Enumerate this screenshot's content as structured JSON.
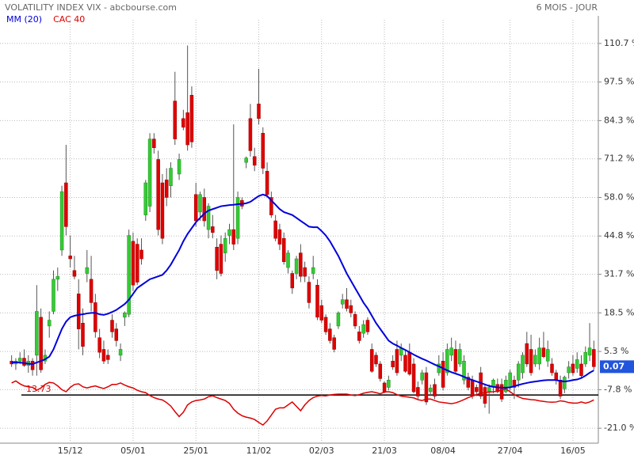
{
  "chart_data": {
    "type": "candlestick",
    "title": "VOLATILITY INDEX VIX - abcbourse.com",
    "subtitle": "6 MOIS - JOUR",
    "up_color": "#33cc33",
    "down_color": "#e00000",
    "wick_color": "#555555",
    "grid": true,
    "ylim": [
      -26.1,
      118.8
    ],
    "yticks": [
      {
        "value": 110.7,
        "label": "110.7 %"
      },
      {
        "value": 97.5,
        "label": "97.5 %"
      },
      {
        "value": 84.3,
        "label": "84.3 %"
      },
      {
        "value": 71.2,
        "label": "71.2 %"
      },
      {
        "value": 58.0,
        "label": "58.0 %"
      },
      {
        "value": 44.8,
        "label": "44.8 %"
      },
      {
        "value": 31.7,
        "label": "31.7 %"
      },
      {
        "value": 18.5,
        "label": "18.5 %"
      },
      {
        "value": 5.3,
        "label": "5.3 %"
      },
      {
        "value": -7.8,
        "label": "-7.8 %"
      },
      {
        "value": -21.0,
        "label": "-21.0 %"
      }
    ],
    "baseline": -9.6,
    "baseline_label": "13.73",
    "last_label": "0.07",
    "last_color": "#2255dd",
    "categories": [
      null,
      null,
      null,
      null,
      null,
      null,
      null,
      null,
      null,
      null,
      null,
      null,
      null,
      null,
      "15/12",
      null,
      null,
      null,
      null,
      null,
      null,
      null,
      null,
      null,
      null,
      null,
      null,
      null,
      null,
      "05/01",
      null,
      null,
      null,
      null,
      null,
      null,
      null,
      null,
      null,
      null,
      null,
      null,
      null,
      null,
      "25/01",
      null,
      null,
      null,
      null,
      null,
      null,
      null,
      null,
      null,
      null,
      null,
      null,
      null,
      null,
      "11/02",
      null,
      null,
      null,
      null,
      null,
      null,
      null,
      null,
      null,
      null,
      null,
      null,
      null,
      null,
      "02/03",
      null,
      null,
      null,
      null,
      null,
      null,
      null,
      null,
      null,
      null,
      null,
      null,
      null,
      null,
      "21/03",
      null,
      null,
      null,
      null,
      null,
      null,
      null,
      null,
      null,
      null,
      null,
      null,
      null,
      "08/04",
      null,
      null,
      null,
      null,
      null,
      null,
      null,
      null,
      null,
      null,
      null,
      null,
      null,
      null,
      null,
      "27/04",
      null,
      null,
      null,
      null,
      null,
      null,
      null,
      null,
      null,
      null,
      null,
      null,
      null,
      null,
      "16/05",
      null,
      null,
      null,
      null,
      null
    ],
    "ohlc": [
      [
        2,
        4,
        0,
        1
      ],
      [
        1,
        3,
        -1,
        2
      ],
      [
        2,
        5,
        1,
        3
      ],
      [
        3,
        6,
        0,
        0.5
      ],
      [
        0.5,
        4,
        -2,
        2
      ],
      [
        2,
        3,
        -3,
        -1
      ],
      [
        4,
        28,
        -3,
        19
      ],
      [
        17,
        20,
        -2,
        -1
      ],
      [
        2,
        6,
        1,
        4
      ],
      [
        14,
        19,
        10,
        16
      ],
      [
        19,
        33,
        18,
        30
      ],
      [
        30,
        34,
        26,
        31
      ],
      [
        40,
        62,
        38,
        60
      ],
      [
        63,
        76,
        45,
        48
      ],
      [
        38,
        45,
        34,
        37
      ],
      [
        33,
        38,
        30,
        31
      ],
      [
        25,
        30,
        6,
        13
      ],
      [
        15,
        20,
        4,
        7
      ],
      [
        32,
        40,
        29,
        34
      ],
      [
        30,
        38,
        19,
        22
      ],
      [
        22,
        25,
        10,
        12
      ],
      [
        10,
        13,
        3,
        5
      ],
      [
        6,
        9,
        1,
        2
      ],
      [
        4,
        6,
        1,
        2.5
      ],
      [
        16,
        18,
        10,
        12
      ],
      [
        13,
        15,
        7,
        9
      ],
      [
        4,
        8,
        2,
        6
      ],
      [
        17,
        19,
        14,
        18.5
      ],
      [
        18,
        47,
        17,
        45
      ],
      [
        43,
        46,
        26,
        28
      ],
      [
        42,
        44,
        28,
        29
      ],
      [
        40,
        44,
        35,
        37
      ],
      [
        52,
        64,
        50,
        63
      ],
      [
        55,
        80,
        53,
        78
      ],
      [
        78,
        80,
        73,
        75
      ],
      [
        71,
        74,
        45,
        47
      ],
      [
        63,
        66,
        42,
        44
      ],
      [
        64,
        68,
        55,
        58
      ],
      [
        62,
        70,
        58,
        68
      ],
      [
        91,
        101,
        76,
        78
      ],
      [
        66,
        73,
        64,
        71
      ],
      [
        85,
        88,
        81,
        82
      ],
      [
        87,
        110,
        74,
        76
      ],
      [
        93,
        96,
        75,
        77
      ],
      [
        59,
        63,
        48,
        50
      ],
      [
        53,
        60,
        50,
        59
      ],
      [
        58,
        61,
        48,
        50
      ],
      [
        47,
        56,
        44,
        55
      ],
      [
        48,
        52,
        44,
        46
      ],
      [
        41,
        44,
        30,
        33
      ],
      [
        42,
        45,
        31,
        32
      ],
      [
        39,
        46,
        36,
        44
      ],
      [
        45,
        49,
        42,
        47
      ],
      [
        47,
        83,
        40,
        42
      ],
      [
        44,
        60,
        42,
        58
      ],
      [
        57,
        58,
        54,
        55
      ],
      [
        70,
        72,
        68,
        71.5
      ],
      [
        85,
        90,
        72,
        74
      ],
      [
        72,
        75,
        67,
        69
      ],
      [
        90,
        102,
        83,
        85
      ],
      [
        80,
        82,
        66,
        68
      ],
      [
        67,
        70,
        58,
        59
      ],
      [
        58,
        60,
        51,
        52
      ],
      [
        50,
        52,
        43,
        44
      ],
      [
        47,
        49,
        40,
        42
      ],
      [
        44,
        46,
        35,
        36
      ],
      [
        34,
        40,
        32,
        39
      ],
      [
        32,
        33,
        25,
        27
      ],
      [
        32,
        38,
        30,
        37
      ],
      [
        39,
        42,
        29,
        31
      ],
      [
        34,
        36,
        29,
        31
      ],
      [
        29,
        31,
        20,
        22
      ],
      [
        32,
        38,
        30,
        34
      ],
      [
        28,
        30,
        16,
        17
      ],
      [
        21,
        23,
        15,
        16
      ],
      [
        17,
        18,
        11,
        12
      ],
      [
        13,
        15,
        8,
        9
      ],
      [
        10,
        11,
        5,
        6
      ],
      [
        14,
        19,
        13,
        18.5
      ],
      [
        21.5,
        25,
        20,
        23
      ],
      [
        23,
        27,
        19,
        20
      ],
      [
        21,
        23,
        17,
        18.5
      ],
      [
        18,
        19,
        13,
        14
      ],
      [
        12,
        14,
        8,
        9
      ],
      [
        11.5,
        16,
        10,
        14.5
      ],
      [
        16,
        17,
        11,
        12
      ],
      [
        6,
        8,
        -2,
        -1.5
      ],
      [
        4,
        5,
        0,
        1
      ],
      [
        1,
        2,
        -5,
        -4
      ],
      [
        -5.5,
        -5,
        -9,
        -8.5
      ],
      [
        -7,
        -3,
        -8,
        -4.5
      ],
      [
        2,
        4,
        -1,
        0
      ],
      [
        6,
        9,
        -3,
        -2
      ],
      [
        4,
        8,
        2,
        6.5
      ],
      [
        4,
        6,
        -2,
        -1.5
      ],
      [
        5,
        8,
        -3,
        -2.5
      ],
      [
        1,
        3,
        -9,
        -8.5
      ],
      [
        -7,
        -5,
        -11,
        -10
      ],
      [
        -4.5,
        -1,
        -6,
        -2
      ],
      [
        -2,
        0,
        -13,
        -12
      ],
      [
        -8.5,
        -6,
        -10,
        -7.2
      ],
      [
        -6,
        -4,
        -11,
        -10
      ],
      [
        -2,
        4,
        -3,
        1
      ],
      [
        2,
        5,
        -8,
        -7
      ],
      [
        -2,
        8,
        -3,
        6
      ],
      [
        4,
        10,
        2,
        6.5
      ],
      [
        6,
        9,
        -2,
        -1.5
      ],
      [
        1,
        8,
        0,
        6
      ],
      [
        -4.5,
        4,
        -6,
        2
      ],
      [
        -3.5,
        -2,
        -8,
        -7
      ],
      [
        -4.5,
        -3,
        -11,
        -10
      ],
      [
        -7,
        -6,
        -10,
        -8.5
      ],
      [
        -2,
        0,
        -11,
        -10
      ],
      [
        -7,
        -6,
        -14,
        -12.5
      ],
      [
        -8.5,
        -6,
        -16,
        -7
      ],
      [
        -7,
        -4,
        -9,
        -4.5
      ],
      [
        -6,
        -4,
        -9,
        -8.5
      ],
      [
        -6,
        -4,
        -12,
        -11
      ],
      [
        -8.5,
        -3,
        -9,
        -4.5
      ],
      [
        -7,
        -1,
        -8,
        -2
      ],
      [
        -4.5,
        -3,
        -11,
        -7
      ],
      [
        -4.5,
        2,
        -7,
        1
      ],
      [
        -2,
        5,
        -4,
        4
      ],
      [
        8,
        12,
        0,
        1
      ],
      [
        6,
        11,
        -3,
        -2
      ],
      [
        1,
        6,
        0,
        4
      ],
      [
        1,
        10,
        -1,
        6.5
      ],
      [
        6.5,
        12,
        3,
        3.5
      ],
      [
        2,
        9,
        0,
        6
      ],
      [
        1,
        3,
        -3,
        -2
      ],
      [
        -2,
        -1,
        -6,
        -4.5
      ],
      [
        -4.5,
        -3,
        -11,
        -10
      ],
      [
        -7.5,
        -3,
        -9,
        -3.5
      ],
      [
        -2,
        2,
        -4,
        0
      ],
      [
        1,
        4,
        -3,
        -2
      ],
      [
        -0.5,
        5,
        -2,
        2.5
      ],
      [
        1,
        4,
        -4,
        -3
      ],
      [
        1,
        7,
        0,
        5
      ],
      [
        4,
        15,
        2,
        6.5
      ],
      [
        6,
        9,
        -1,
        0.07
      ]
    ],
    "series": [
      {
        "name": "MM (20)",
        "color": "#0000dd",
        "values": [
          1.5,
          1.6,
          1.5,
          1.3,
          1.1,
          1.0,
          1.5,
          2.0,
          2.6,
          3.5,
          6.0,
          9.5,
          13,
          15.5,
          17,
          17.5,
          17.8,
          18.0,
          18.3,
          18.5,
          18.5,
          18.0,
          17.8,
          18.2,
          18.8,
          19.5,
          20.5,
          21.5,
          23,
          25,
          27,
          28,
          29,
          30,
          30.5,
          31,
          31.5,
          33,
          35,
          37.5,
          40,
          43,
          45.5,
          47.5,
          49.5,
          51,
          52.5,
          53.5,
          54,
          54.5,
          55,
          55.2,
          55.4,
          55.5,
          55.7,
          55.8,
          56,
          56.5,
          57.5,
          58.5,
          59,
          58.5,
          57,
          55.5,
          54,
          53,
          52.5,
          52,
          51,
          50,
          49,
          48,
          47.8,
          47.8,
          46.5,
          45,
          43,
          40.5,
          38,
          35,
          32,
          29.5,
          27,
          24.5,
          22,
          20,
          17.5,
          15,
          13,
          11,
          9,
          8,
          7.3,
          6.5,
          5.8,
          5,
          4.2,
          3.5,
          2.8,
          2.2,
          1.5,
          0.8,
          0.2,
          -0.5,
          -1.2,
          -1.8,
          -2.3,
          -2.8,
          -3.4,
          -4,
          -4.5,
          -5,
          -5.5,
          -6,
          -6.5,
          -6.8,
          -7,
          -7.1,
          -7.1,
          -7,
          -6.6,
          -6.2,
          -5.8,
          -5.5,
          -5.2,
          -5,
          -4.8,
          -4.6,
          -4.5,
          -4.5,
          -4.5,
          -4.8,
          -5,
          -4.8,
          -4.5,
          -4.3,
          -3.8,
          -3,
          -2,
          -1.2
        ]
      },
      {
        "name": "CAC 40",
        "color": "#dd0000",
        "values": [
          -5.5,
          -4.8,
          -5.8,
          -6.5,
          -6.8,
          -7.0,
          -8.0,
          -7.2,
          -6.0,
          -5.3,
          -5.5,
          -6.5,
          -7.8,
          -8.5,
          -7.0,
          -6.0,
          -5.8,
          -6.8,
          -7.2,
          -6.8,
          -6.5,
          -7.0,
          -7.4,
          -6.8,
          -6.0,
          -6.0,
          -5.5,
          -6.2,
          -6.8,
          -7.2,
          -8.0,
          -8.5,
          -8.8,
          -9.8,
          -10.5,
          -11.0,
          -11.3,
          -12.2,
          -13.4,
          -15.3,
          -17.0,
          -15.5,
          -13.0,
          -12.0,
          -11.5,
          -11.3,
          -11.0,
          -10.2,
          -9.9,
          -10.5,
          -11.0,
          -11.5,
          -12.5,
          -14.5,
          -15.8,
          -16.7,
          -17.2,
          -17.5,
          -18.0,
          -19.0,
          -19.9,
          -18.5,
          -16.5,
          -14.5,
          -14.0,
          -14.0,
          -13.0,
          -12.0,
          -13.5,
          -15.0,
          -13.0,
          -11.5,
          -10.5,
          -10.0,
          -9.8,
          -9.9,
          -9.6,
          -9.4,
          -9.3,
          -9.3,
          -9.3,
          -9.6,
          -9.8,
          -9.5,
          -9.0,
          -8.7,
          -8.5,
          -8.8,
          -9.2,
          -8.6,
          -8.5,
          -8.8,
          -9.5,
          -10.0,
          -10.2,
          -10.4,
          -10.6,
          -11.2,
          -11.5,
          -11.0,
          -11.0,
          -11.5,
          -12.0,
          -12.2,
          -12.4,
          -12.6,
          -12.3,
          -11.8,
          -11.2,
          -10.5,
          -10.0,
          -9.5,
          -9.0,
          -8.8,
          -8.6,
          -8.5,
          -8.3,
          -8.0,
          -7.5,
          -8.5,
          -9.5,
          -10.2,
          -10.8,
          -11.0,
          -11.2,
          -11.3,
          -11.6,
          -11.8,
          -12.0,
          -12.1,
          -12.0,
          -11.6,
          -11.8,
          -12.2,
          -12.4,
          -12.4,
          -12.0,
          -12.4,
          -12.0,
          -11.3
        ]
      }
    ]
  }
}
